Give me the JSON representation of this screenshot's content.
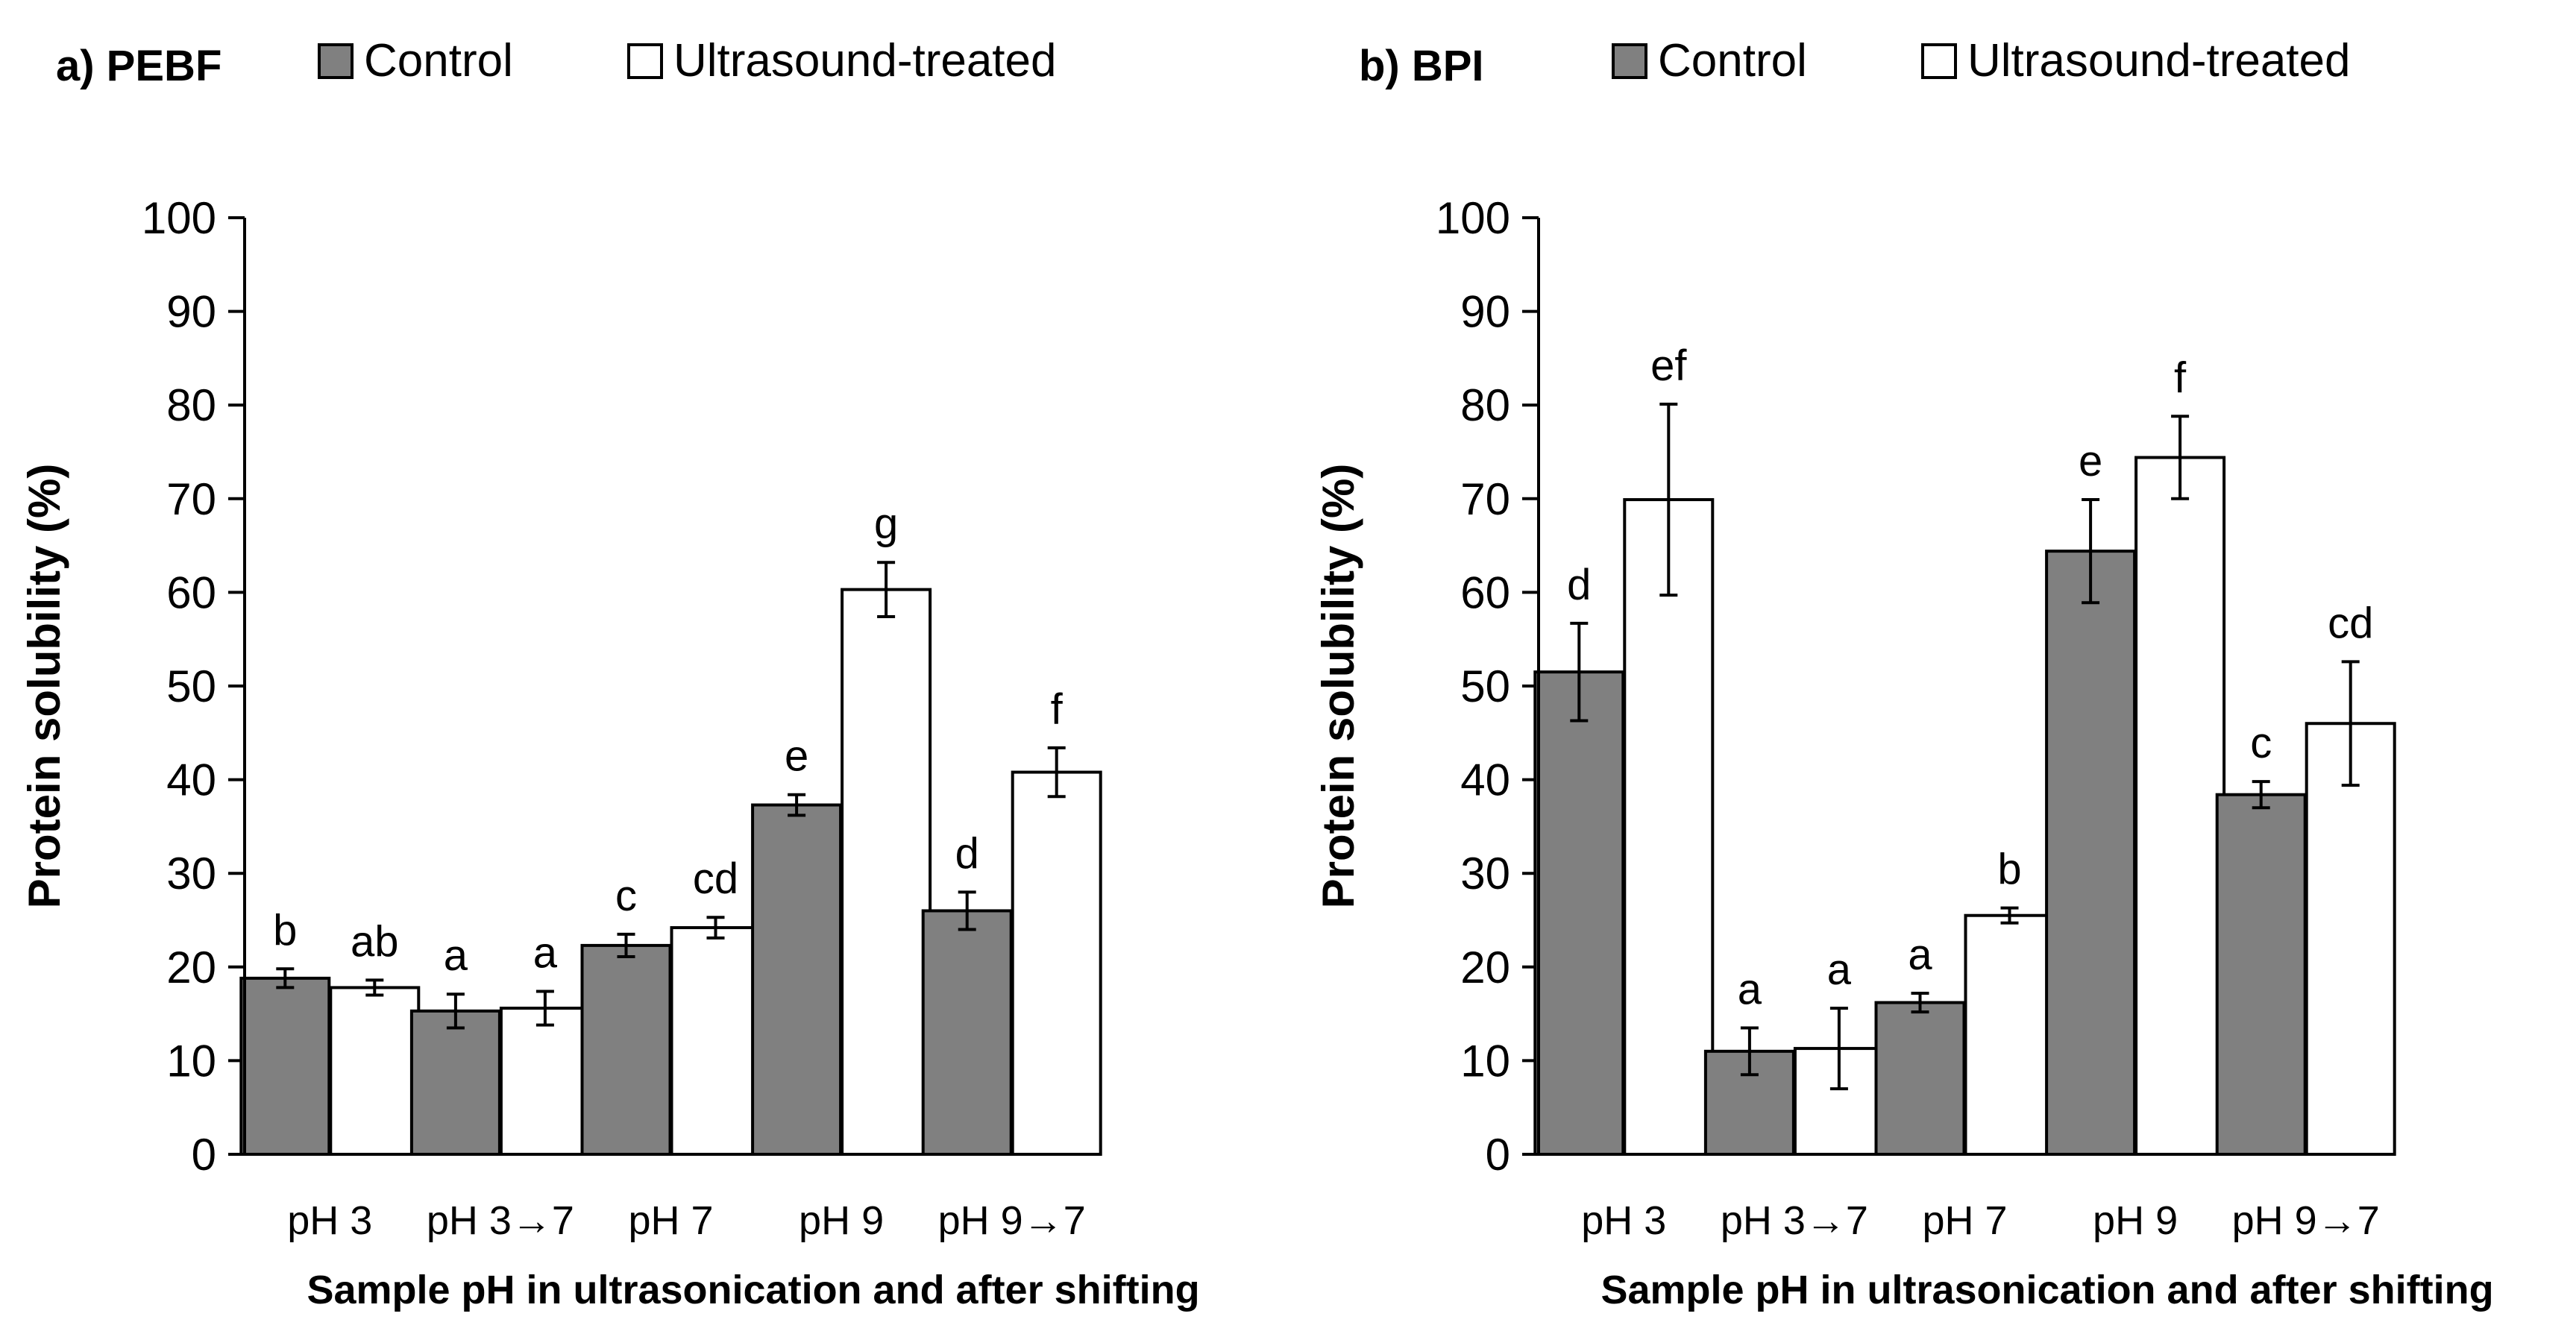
{
  "chart_data": [
    {
      "type": "bar",
      "title": "a) PEBF",
      "xlabel": "Sample pH in ultrasonication and after shifting",
      "ylabel": "Protein solubility (%)",
      "ylim": [
        0,
        100
      ],
      "yticks": [
        "0",
        "10",
        "20",
        "30",
        "40",
        "50",
        "60",
        "70",
        "80",
        "90",
        "100"
      ],
      "categories": [
        "pH 3",
        "pH 3→7",
        "pH 7",
        "pH 9",
        "pH 9→7"
      ],
      "legend_position": "top",
      "series": [
        {
          "name": "Control",
          "color": "#808080",
          "values": [
            18.8,
            15.3,
            22.3,
            37.3,
            26.0
          ],
          "errors": [
            1.0,
            1.8,
            1.2,
            1.1,
            2.0
          ],
          "labels": [
            "b",
            "a",
            "c",
            "e",
            "d"
          ]
        },
        {
          "name": "Ultrasound-treated",
          "color": "#ffffff",
          "values": [
            17.8,
            15.6,
            24.2,
            60.3,
            40.8
          ],
          "errors": [
            0.8,
            1.8,
            1.1,
            2.9,
            2.6
          ],
          "labels": [
            "ab",
            "a",
            "cd",
            "g",
            "f"
          ]
        }
      ]
    },
    {
      "type": "bar",
      "title": "b) BPI",
      "xlabel": "Sample pH in ultrasonication and after shifting",
      "ylabel": "Protein solubility (%)",
      "ylim": [
        0,
        100
      ],
      "yticks": [
        "0",
        "10",
        "20",
        "30",
        "40",
        "50",
        "60",
        "70",
        "80",
        "90",
        "100"
      ],
      "categories": [
        "pH 3",
        "pH 3→7",
        "pH 7",
        "pH 9",
        "pH 9→7"
      ],
      "legend_position": "top",
      "series": [
        {
          "name": "Control",
          "color": "#808080",
          "values": [
            51.5,
            11.0,
            16.2,
            64.4,
            38.4
          ],
          "errors": [
            5.2,
            2.5,
            1.0,
            5.5,
            1.4
          ],
          "labels": [
            "d",
            "a",
            "a",
            "e",
            "c"
          ]
        },
        {
          "name": "Ultrasound-treated",
          "color": "#ffffff",
          "values": [
            69.9,
            11.3,
            25.5,
            74.4,
            46.0
          ],
          "errors": [
            10.2,
            4.3,
            0.8,
            4.4,
            6.6
          ],
          "labels": [
            "ef",
            "a",
            "b",
            "f",
            "cd"
          ]
        }
      ]
    }
  ]
}
